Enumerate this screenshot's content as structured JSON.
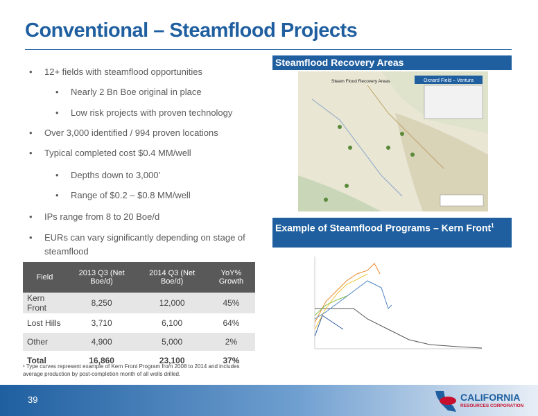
{
  "header": {
    "title": "Conventional – Steamflood Projects"
  },
  "bullets": [
    {
      "level": 1,
      "text": "12+ fields with steamflood opportunities"
    },
    {
      "level": 2,
      "text": "Nearly 2 Bn Boe original in place"
    },
    {
      "level": 2,
      "text": "Low risk projects with proven technology"
    },
    {
      "level": 1,
      "text": "Over 3,000 identified / 994 proven locations"
    },
    {
      "level": 1,
      "text": "Typical completed cost $0.4 MM/well"
    },
    {
      "level": 2,
      "text": "Depths down to 3,000’"
    },
    {
      "level": 2,
      "text": "Range of $0.2 – $0.8 MM/well"
    },
    {
      "level": 1,
      "text": "IPs range from 8 to 20 Boe/d"
    },
    {
      "level": 1,
      "text": "EURs can vary significantly depending on stage of steamflood"
    }
  ],
  "table": {
    "headers": [
      "Field",
      "2013 Q3 (Net Boe/d)",
      "2014 Q3 (Net Boe/d)",
      "YoY% Growth"
    ],
    "rows": [
      [
        "Kern Front",
        "8,250",
        "12,000",
        "45%"
      ],
      [
        "Lost Hills",
        "3,710",
        "6,100",
        "64%"
      ],
      [
        "Other",
        "4,900",
        "5,000",
        "2%"
      ],
      [
        "Total",
        "16,860",
        "23,100",
        "37%"
      ]
    ]
  },
  "footnote": "¹ Type curves represent example of Kern Front Program from 2008 to 2014 and includes average production by post-completion month of all wells drilled.",
  "map": {
    "header": "Steamflood Recovery Areas",
    "title": "Steam Flood Recovery Areas",
    "inset": "Oxnard Field – Ventura"
  },
  "programs": {
    "header": "Example of Steamflood Programs – Kern Front",
    "note_mark": "1"
  },
  "footer": {
    "page": "39",
    "company": "CALIFORNIA",
    "company_sub": "RESOURCES CORPORATION"
  }
}
